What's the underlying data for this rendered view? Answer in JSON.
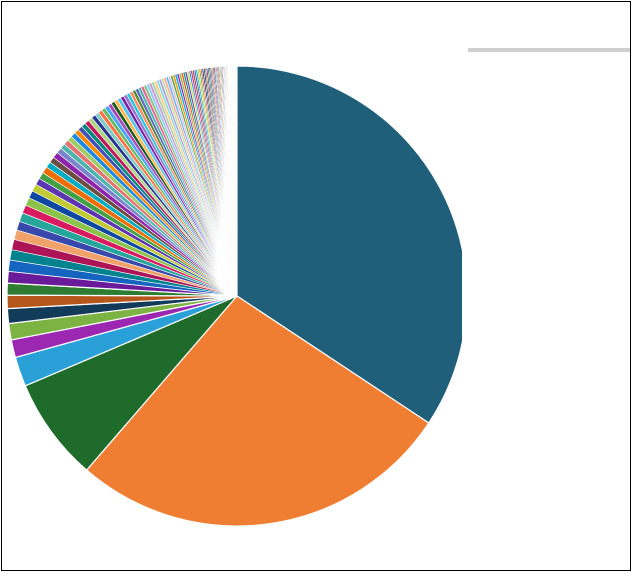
{
  "header": {
    "top_left_label": "",
    "chart_title": ""
  },
  "chart_data": {
    "type": "pie",
    "title": "",
    "legend_position": "right",
    "slices": [
      {
        "label": "",
        "value": 33.0,
        "color": "#1f5f7a"
      },
      {
        "label": "",
        "value": 26.0,
        "color": "#ef7d32"
      },
      {
        "label": "",
        "value": 7.0,
        "color": "#1e6b2c"
      },
      {
        "label": "",
        "value": 2.0,
        "color": "#2aa0d8"
      },
      {
        "label": "",
        "value": 1.2,
        "color": "#9c27b0"
      },
      {
        "label": "",
        "value": 1.1,
        "color": "#7cb342"
      },
      {
        "label": "",
        "value": 1.0,
        "color": "#123b5a"
      },
      {
        "label": "",
        "value": 0.9,
        "color": "#b5561b"
      },
      {
        "label": "",
        "value": 0.8,
        "color": "#2e7d32"
      },
      {
        "label": "",
        "value": 0.8,
        "color": "#6a1b9a"
      },
      {
        "label": "",
        "value": 0.75,
        "color": "#1565c0"
      },
      {
        "label": "",
        "value": 0.7,
        "color": "#00838f"
      },
      {
        "label": "",
        "value": 0.7,
        "color": "#ad1457"
      },
      {
        "label": "",
        "value": 0.65,
        "color": "#f0a26a"
      },
      {
        "label": "",
        "value": 0.6,
        "color": "#3949ab"
      },
      {
        "label": "",
        "value": 0.6,
        "color": "#26a69a"
      },
      {
        "label": "",
        "value": 0.55,
        "color": "#d81b60"
      },
      {
        "label": "",
        "value": 0.55,
        "color": "#8bc34a"
      },
      {
        "label": "",
        "value": 0.5,
        "color": "#0d47a1"
      },
      {
        "label": "",
        "value": 0.5,
        "color": "#c0ca33"
      },
      {
        "label": "",
        "value": 0.45,
        "color": "#5e35b1"
      },
      {
        "label": "",
        "value": 0.45,
        "color": "#43a047"
      },
      {
        "label": "",
        "value": 0.45,
        "color": "#ef6c00"
      },
      {
        "label": "",
        "value": 0.4,
        "color": "#00acc1"
      },
      {
        "label": "",
        "value": 0.4,
        "color": "#6d4c41"
      },
      {
        "label": "",
        "value": 0.4,
        "color": "#8e24aa"
      },
      {
        "label": "",
        "value": 0.38,
        "color": "#7986cb"
      },
      {
        "label": "",
        "value": 0.36,
        "color": "#4db6ac"
      },
      {
        "label": "",
        "value": 0.35,
        "color": "#e57373"
      },
      {
        "label": "",
        "value": 0.34,
        "color": "#9ccc65"
      },
      {
        "label": "",
        "value": 0.33,
        "color": "#1e88e5"
      },
      {
        "label": "",
        "value": 0.32,
        "color": "#fb8c00"
      },
      {
        "label": "",
        "value": 0.31,
        "color": "#3f51b5"
      },
      {
        "label": "",
        "value": 0.3,
        "color": "#00897b"
      },
      {
        "label": "",
        "value": 0.3,
        "color": "#c2185b"
      },
      {
        "label": "",
        "value": 0.29,
        "color": "#aed581"
      },
      {
        "label": "",
        "value": 0.28,
        "color": "#283593"
      },
      {
        "label": "",
        "value": 0.28,
        "color": "#80cbc4"
      },
      {
        "label": "",
        "value": 0.27,
        "color": "#ff7043"
      },
      {
        "label": "",
        "value": 0.26,
        "color": "#66bb6a"
      },
      {
        "label": "",
        "value": 0.26,
        "color": "#42a5f5"
      },
      {
        "label": "",
        "value": 0.25,
        "color": "#ab47bc"
      },
      {
        "label": "",
        "value": 0.25,
        "color": "#1b5e20"
      },
      {
        "label": "",
        "value": 0.24,
        "color": "#ffb74d"
      },
      {
        "label": "",
        "value": 0.24,
        "color": "#4fc3f7"
      },
      {
        "label": "",
        "value": 0.23,
        "color": "#7b1fa2"
      },
      {
        "label": "",
        "value": 0.23,
        "color": "#9575cd"
      },
      {
        "label": "",
        "value": 0.22,
        "color": "#26c6da"
      },
      {
        "label": "",
        "value": 0.22,
        "color": "#ff8a65"
      },
      {
        "label": "",
        "value": 0.21,
        "color": "#558b2f"
      },
      {
        "label": "",
        "value": 0.21,
        "color": "#5c6bc0"
      },
      {
        "label": "",
        "value": 0.2,
        "color": "#4db6ac"
      },
      {
        "label": "",
        "value": 0.2,
        "color": "#f06292"
      },
      {
        "label": "",
        "value": 0.19,
        "color": "#81c784"
      },
      {
        "label": "",
        "value": 0.19,
        "color": "#90caf9"
      },
      {
        "label": "",
        "value": 0.18,
        "color": "#ce93d8"
      },
      {
        "label": "",
        "value": 0.18,
        "color": "#a5d6a7"
      },
      {
        "label": "",
        "value": 0.18,
        "color": "#ffcc80"
      },
      {
        "label": "",
        "value": 0.17,
        "color": "#80deea"
      },
      {
        "label": "",
        "value": 0.17,
        "color": "#b39ddb"
      },
      {
        "label": "",
        "value": 0.17,
        "color": "#c5e1a5"
      },
      {
        "label": "",
        "value": 0.16,
        "color": "#ffab91"
      },
      {
        "label": "",
        "value": 0.16,
        "color": "#64b5f6"
      },
      {
        "label": "",
        "value": 0.16,
        "color": "#e1bee7"
      },
      {
        "label": "",
        "value": 0.15,
        "color": "#4caf50"
      },
      {
        "label": "",
        "value": 0.15,
        "color": "#ff9800"
      },
      {
        "label": "",
        "value": 0.15,
        "color": "#03a9f4"
      },
      {
        "label": "",
        "value": 0.14,
        "color": "#9c27b0"
      },
      {
        "label": "",
        "value": 0.14,
        "color": "#8bc34a"
      },
      {
        "label": "",
        "value": 0.14,
        "color": "#ff5722"
      },
      {
        "label": "",
        "value": 0.13,
        "color": "#009688"
      },
      {
        "label": "",
        "value": 0.13,
        "color": "#673ab7"
      },
      {
        "label": "",
        "value": 0.13,
        "color": "#cddc39"
      },
      {
        "label": "",
        "value": 0.12,
        "color": "#2196f3"
      },
      {
        "label": "",
        "value": 0.12,
        "color": "#e91e63"
      },
      {
        "label": "",
        "value": 0.12,
        "color": "#795548"
      },
      {
        "label": "",
        "value": 0.11,
        "color": "#3f51b5"
      },
      {
        "label": "",
        "value": 0.11,
        "color": "#00bcd4"
      },
      {
        "label": "",
        "value": 0.11,
        "color": "#ffc107"
      },
      {
        "label": "",
        "value": 0.1,
        "color": "#4caf50"
      },
      {
        "label": "",
        "value": 0.1,
        "color": "#f44336"
      },
      {
        "label": "",
        "value": 0.1,
        "color": "#1a237e"
      },
      {
        "label": "",
        "value": 0.1,
        "color": "#004d40"
      },
      {
        "label": "",
        "value": 0.09,
        "color": "#bf360c"
      },
      {
        "label": "",
        "value": 0.09,
        "color": "#311b92"
      },
      {
        "label": "",
        "value": 0.09,
        "color": "#33691e"
      },
      {
        "label": "",
        "value": 0.09,
        "color": "#01579b"
      },
      {
        "label": "",
        "value": 0.08,
        "color": "#880e4f"
      },
      {
        "label": "",
        "value": 0.08,
        "color": "#e65100"
      },
      {
        "label": "",
        "value": 0.08,
        "color": "#006064"
      },
      {
        "label": "",
        "value": 0.08,
        "color": "#4a148c"
      },
      {
        "label": "",
        "value": 0.07,
        "color": "#827717"
      },
      {
        "label": "",
        "value": 0.07,
        "color": "#0d47a1"
      },
      {
        "label": "",
        "value": 0.07,
        "color": "#b71c1c"
      },
      {
        "label": "",
        "value": 0.07,
        "color": "#1b5e20"
      },
      {
        "label": "",
        "value": 0.06,
        "color": "#ff6f00"
      },
      {
        "label": "",
        "value": 0.06,
        "color": "#263238"
      },
      {
        "label": "",
        "value": 0.06,
        "color": "#3e2723"
      },
      {
        "label": "",
        "value": 0.06,
        "color": "#212121"
      },
      {
        "label": "",
        "value": 0.05,
        "color": "#6a1b9a"
      },
      {
        "label": "",
        "value": 0.05,
        "color": "#00695c"
      },
      {
        "label": "",
        "value": 0.05,
        "color": "#ad1457"
      },
      {
        "label": "",
        "value": 0.05,
        "color": "#1565c0"
      },
      {
        "label": "",
        "value": 0.05,
        "color": "#2e7d32"
      },
      {
        "label": "",
        "value": 0.05,
        "color": "#ef6c00"
      },
      {
        "label": "",
        "value": 0.04,
        "color": "#00838f"
      },
      {
        "label": "",
        "value": 0.04,
        "color": "#5e35b1"
      },
      {
        "label": "",
        "value": 0.04,
        "color": "#558b2f"
      },
      {
        "label": "",
        "value": 0.04,
        "color": "#d84315"
      },
      {
        "label": "",
        "value": 0.04,
        "color": "#283593"
      },
      {
        "label": "",
        "value": 0.04,
        "color": "#00796b"
      },
      {
        "label": "",
        "value": 0.04,
        "color": "#c2185b"
      },
      {
        "label": "",
        "value": 0.03,
        "color": "#689f38"
      },
      {
        "label": "",
        "value": 0.03,
        "color": "#1976d2"
      },
      {
        "label": "",
        "value": 0.03,
        "color": "#f57c00"
      },
      {
        "label": "",
        "value": 0.03,
        "color": "#7b1fa2"
      },
      {
        "label": "",
        "value": 0.03,
        "color": "#388e3c"
      },
      {
        "label": "",
        "value": 0.03,
        "color": "#0288d1"
      },
      {
        "label": "",
        "value": 0.03,
        "color": "#c62828"
      },
      {
        "label": "",
        "value": 0.02,
        "color": "#303f9f"
      },
      {
        "label": "",
        "value": 0.02,
        "color": "#0097a7"
      },
      {
        "label": "",
        "value": 0.02,
        "color": "#512da8"
      },
      {
        "label": "",
        "value": 0.02,
        "color": "#afb42b"
      },
      {
        "label": "",
        "value": 0.02,
        "color": "#e64a19"
      },
      {
        "label": "",
        "value": 0.02,
        "color": "#00796b"
      },
      {
        "label": "",
        "value": 0.02,
        "color": "#455a64"
      },
      {
        "label": "",
        "value": 0.02,
        "color": "#5d4037"
      }
    ]
  }
}
